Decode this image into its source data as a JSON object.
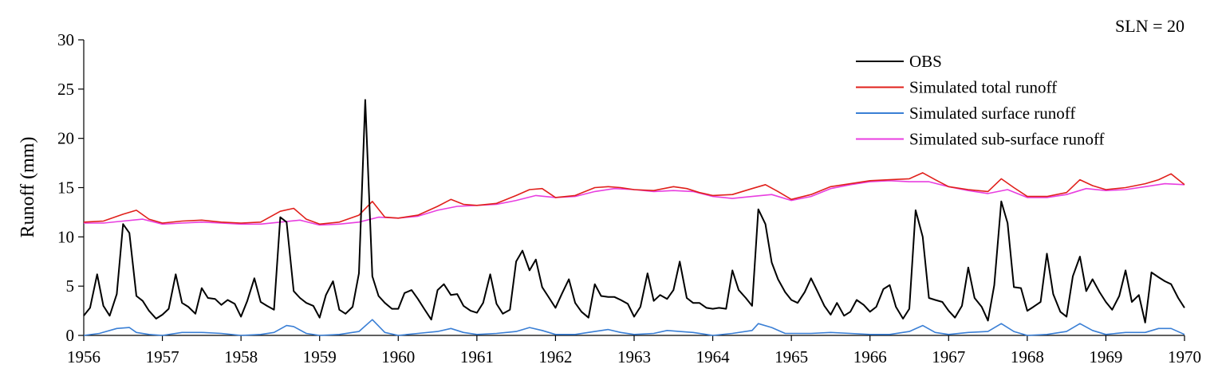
{
  "chart_data": {
    "type": "line",
    "title": "",
    "annotation": "SLN = 20",
    "xlabel": "",
    "ylabel": "Runoff (mm)",
    "xlim": [
      1956,
      1970
    ],
    "ylim": [
      0,
      30
    ],
    "xticks": [
      "1956",
      "1957",
      "1958",
      "1959",
      "1960",
      "1961",
      "1962",
      "1963",
      "1964",
      "1965",
      "1966",
      "1967",
      "1968",
      "1969",
      "1970"
    ],
    "yticks": [
      "0",
      "5",
      "10",
      "15",
      "20",
      "25",
      "30"
    ],
    "grid": false,
    "legend_position": "top-right",
    "series": [
      {
        "name": "OBS",
        "color": "#000000",
        "x": [
          1956.0,
          1956.08,
          1956.17,
          1956.25,
          1956.33,
          1956.42,
          1956.5,
          1956.58,
          1956.67,
          1956.75,
          1956.83,
          1956.92,
          1957.0,
          1957.08,
          1957.17,
          1957.25,
          1957.33,
          1957.42,
          1957.5,
          1957.58,
          1957.67,
          1957.75,
          1957.83,
          1957.92,
          1958.0,
          1958.08,
          1958.17,
          1958.25,
          1958.33,
          1958.42,
          1958.5,
          1958.58,
          1958.67,
          1958.75,
          1958.83,
          1958.92,
          1959.0,
          1959.08,
          1959.17,
          1959.25,
          1959.33,
          1959.42,
          1959.5,
          1959.58,
          1959.67,
          1959.75,
          1959.83,
          1959.92,
          1960.0,
          1960.08,
          1960.17,
          1960.25,
          1960.33,
          1960.42,
          1960.5,
          1960.58,
          1960.67,
          1960.75,
          1960.83,
          1960.92,
          1961.0,
          1961.08,
          1961.17,
          1961.25,
          1961.33,
          1961.42,
          1961.5,
          1961.58,
          1961.67,
          1961.75,
          1961.83,
          1961.92,
          1962.0,
          1962.08,
          1962.17,
          1962.25,
          1962.33,
          1962.42,
          1962.5,
          1962.58,
          1962.67,
          1962.75,
          1962.83,
          1962.92,
          1963.0,
          1963.08,
          1963.17,
          1963.25,
          1963.33,
          1963.42,
          1963.5,
          1963.58,
          1963.67,
          1963.75,
          1963.83,
          1963.92,
          1964.0,
          1964.08,
          1964.17,
          1964.25,
          1964.33,
          1964.42,
          1964.5,
          1964.58,
          1964.67,
          1964.75,
          1964.83,
          1964.92,
          1965.0,
          1965.08,
          1965.17,
          1965.25,
          1965.33,
          1965.42,
          1965.5,
          1965.58,
          1965.67,
          1965.75,
          1965.83,
          1965.92,
          1966.0,
          1966.08,
          1966.17,
          1966.25,
          1966.33,
          1966.42,
          1966.5,
          1966.58,
          1966.67,
          1966.75,
          1966.83,
          1966.92,
          1967.0,
          1967.08,
          1967.17,
          1967.25,
          1967.33,
          1967.42,
          1967.5,
          1967.58,
          1967.67,
          1967.75,
          1967.83,
          1967.92,
          1968.0,
          1968.08,
          1968.17,
          1968.25,
          1968.33,
          1968.42,
          1968.5,
          1968.58,
          1968.67,
          1968.75,
          1968.83,
          1968.92,
          1969.0,
          1969.08,
          1969.17,
          1969.25,
          1969.33,
          1969.42,
          1969.5,
          1969.58,
          1969.67,
          1969.75,
          1969.83,
          1969.92,
          1970.0
        ],
        "y": [
          2.0,
          2.8,
          6.2,
          3.0,
          2.0,
          4.2,
          11.3,
          10.4,
          4.0,
          3.5,
          2.5,
          1.7,
          2.1,
          2.7,
          6.2,
          3.3,
          2.9,
          2.2,
          4.8,
          3.8,
          3.7,
          3.1,
          3.6,
          3.2,
          1.9,
          3.5,
          5.8,
          3.4,
          3.0,
          2.6,
          12.0,
          11.5,
          4.5,
          3.8,
          3.3,
          3.0,
          1.8,
          4.1,
          5.5,
          2.6,
          2.2,
          2.9,
          6.3,
          23.9,
          6.0,
          4.0,
          3.3,
          2.7,
          2.7,
          4.3,
          4.6,
          3.7,
          2.7,
          1.6,
          4.6,
          5.2,
          4.1,
          4.2,
          3.0,
          2.5,
          2.3,
          3.3,
          6.2,
          3.2,
          2.2,
          2.6,
          7.5,
          8.6,
          6.6,
          7.7,
          4.9,
          3.8,
          2.8,
          4.2,
          5.7,
          3.3,
          2.4,
          1.8,
          5.2,
          4.0,
          3.9,
          3.9,
          3.6,
          3.2,
          1.9,
          2.9,
          6.3,
          3.5,
          4.1,
          3.7,
          4.6,
          7.5,
          3.8,
          3.3,
          3.3,
          2.8,
          2.7,
          2.8,
          2.7,
          6.6,
          4.6,
          3.8,
          3.0,
          12.8,
          11.3,
          7.4,
          5.7,
          4.4,
          3.6,
          3.3,
          4.4,
          5.8,
          4.5,
          3.0,
          2.1,
          3.3,
          2.0,
          2.4,
          3.6,
          3.1,
          2.4,
          2.9,
          4.7,
          5.1,
          2.9,
          1.7,
          2.7,
          12.7,
          10.0,
          3.8,
          3.6,
          3.4,
          2.5,
          1.8,
          3.0,
          6.9,
          3.8,
          2.9,
          1.5,
          5.1,
          13.6,
          11.4,
          4.9,
          4.8,
          2.5,
          2.9,
          3.4,
          8.3,
          4.2,
          2.4,
          1.9,
          6.0,
          8.0,
          4.5,
          5.7,
          4.4,
          3.4,
          2.6,
          4.0,
          6.6,
          3.4,
          4.1,
          1.3,
          6.4,
          5.9,
          5.5,
          5.2,
          3.8,
          2.8
        ]
      },
      {
        "name": "Simulated total runoff",
        "color": "#e0201b",
        "x": [
          1956.0,
          1956.25,
          1956.5,
          1956.67,
          1956.83,
          1957.0,
          1957.25,
          1957.5,
          1957.75,
          1958.0,
          1958.25,
          1958.5,
          1958.67,
          1958.83,
          1959.0,
          1959.25,
          1959.5,
          1959.67,
          1959.83,
          1960.0,
          1960.25,
          1960.5,
          1960.67,
          1960.83,
          1961.0,
          1961.25,
          1961.5,
          1961.67,
          1961.83,
          1962.0,
          1962.25,
          1962.5,
          1962.67,
          1962.83,
          1963.0,
          1963.25,
          1963.5,
          1963.67,
          1963.83,
          1964.0,
          1964.25,
          1964.5,
          1964.67,
          1964.83,
          1965.0,
          1965.25,
          1965.5,
          1965.75,
          1966.0,
          1966.25,
          1966.5,
          1966.67,
          1966.83,
          1967.0,
          1967.25,
          1967.5,
          1967.67,
          1967.83,
          1968.0,
          1968.25,
          1968.5,
          1968.67,
          1968.83,
          1969.0,
          1969.25,
          1969.5,
          1969.67,
          1969.83,
          1970.0
        ],
        "y": [
          11.5,
          11.6,
          12.3,
          12.7,
          11.8,
          11.4,
          11.6,
          11.7,
          11.5,
          11.4,
          11.5,
          12.6,
          12.9,
          11.8,
          11.3,
          11.5,
          12.2,
          13.6,
          12.0,
          11.9,
          12.2,
          13.1,
          13.8,
          13.3,
          13.2,
          13.4,
          14.2,
          14.8,
          14.9,
          14.0,
          14.2,
          15.0,
          15.1,
          15.0,
          14.8,
          14.7,
          15.1,
          14.9,
          14.5,
          14.2,
          14.3,
          14.9,
          15.3,
          14.6,
          13.8,
          14.3,
          15.1,
          15.4,
          15.7,
          15.8,
          15.9,
          16.5,
          15.8,
          15.1,
          14.8,
          14.6,
          15.9,
          15.0,
          14.1,
          14.1,
          14.5,
          15.8,
          15.2,
          14.8,
          15.0,
          15.4,
          15.8,
          16.4,
          15.3
        ]
      },
      {
        "name": "Simulated surface runoff",
        "color": "#3a7fd5",
        "x": [
          1956.0,
          1956.2,
          1956.42,
          1956.58,
          1956.67,
          1956.83,
          1957.0,
          1957.25,
          1957.5,
          1957.75,
          1958.0,
          1958.25,
          1958.42,
          1958.58,
          1958.67,
          1958.83,
          1959.0,
          1959.25,
          1959.5,
          1959.67,
          1959.83,
          1960.0,
          1960.25,
          1960.5,
          1960.67,
          1960.83,
          1961.0,
          1961.25,
          1961.5,
          1961.67,
          1961.83,
          1962.0,
          1962.25,
          1962.5,
          1962.67,
          1962.83,
          1963.0,
          1963.25,
          1963.42,
          1963.58,
          1963.75,
          1964.0,
          1964.25,
          1964.5,
          1964.58,
          1964.75,
          1964.92,
          1965.25,
          1965.5,
          1965.75,
          1966.0,
          1966.25,
          1966.5,
          1966.67,
          1966.83,
          1967.0,
          1967.25,
          1967.5,
          1967.67,
          1967.83,
          1968.0,
          1968.25,
          1968.5,
          1968.67,
          1968.83,
          1969.0,
          1969.25,
          1969.5,
          1969.67,
          1969.83,
          1970.0
        ],
        "y": [
          0.0,
          0.2,
          0.7,
          0.8,
          0.3,
          0.1,
          0.0,
          0.3,
          0.3,
          0.2,
          0.0,
          0.1,
          0.3,
          1.0,
          0.9,
          0.2,
          0.0,
          0.1,
          0.4,
          1.6,
          0.3,
          0.0,
          0.2,
          0.4,
          0.7,
          0.3,
          0.1,
          0.2,
          0.4,
          0.8,
          0.5,
          0.1,
          0.1,
          0.4,
          0.6,
          0.3,
          0.1,
          0.2,
          0.5,
          0.4,
          0.3,
          0.0,
          0.2,
          0.5,
          1.2,
          0.8,
          0.2,
          0.2,
          0.3,
          0.2,
          0.1,
          0.1,
          0.4,
          1.0,
          0.3,
          0.1,
          0.3,
          0.4,
          1.2,
          0.4,
          0.0,
          0.1,
          0.4,
          1.2,
          0.5,
          0.1,
          0.3,
          0.3,
          0.7,
          0.7,
          0.1
        ]
      },
      {
        "name": "Simulated sub-surface runoff",
        "color": "#e83ee0",
        "x": [
          1956.0,
          1956.25,
          1956.5,
          1956.75,
          1957.0,
          1957.25,
          1957.5,
          1957.75,
          1958.0,
          1958.25,
          1958.5,
          1958.75,
          1959.0,
          1959.25,
          1959.5,
          1959.75,
          1960.0,
          1960.25,
          1960.5,
          1960.75,
          1961.0,
          1961.25,
          1961.5,
          1961.75,
          1962.0,
          1962.25,
          1962.5,
          1962.75,
          1963.0,
          1963.25,
          1963.5,
          1963.75,
          1964.0,
          1964.25,
          1964.5,
          1964.75,
          1965.0,
          1965.25,
          1965.5,
          1965.75,
          1966.0,
          1966.25,
          1966.5,
          1966.75,
          1967.0,
          1967.25,
          1967.5,
          1967.75,
          1968.0,
          1968.25,
          1968.5,
          1968.75,
          1969.0,
          1969.25,
          1969.5,
          1969.75,
          1970.0
        ],
        "y": [
          11.4,
          11.4,
          11.6,
          11.8,
          11.3,
          11.4,
          11.5,
          11.4,
          11.3,
          11.3,
          11.5,
          11.7,
          11.2,
          11.3,
          11.5,
          12.0,
          11.9,
          12.1,
          12.7,
          13.1,
          13.2,
          13.3,
          13.7,
          14.2,
          14.0,
          14.1,
          14.6,
          14.9,
          14.8,
          14.6,
          14.7,
          14.6,
          14.1,
          13.9,
          14.1,
          14.3,
          13.7,
          14.1,
          14.9,
          15.3,
          15.6,
          15.7,
          15.6,
          15.6,
          15.1,
          14.7,
          14.4,
          14.8,
          14.0,
          14.0,
          14.3,
          14.9,
          14.7,
          14.8,
          15.1,
          15.4,
          15.3
        ]
      }
    ]
  }
}
